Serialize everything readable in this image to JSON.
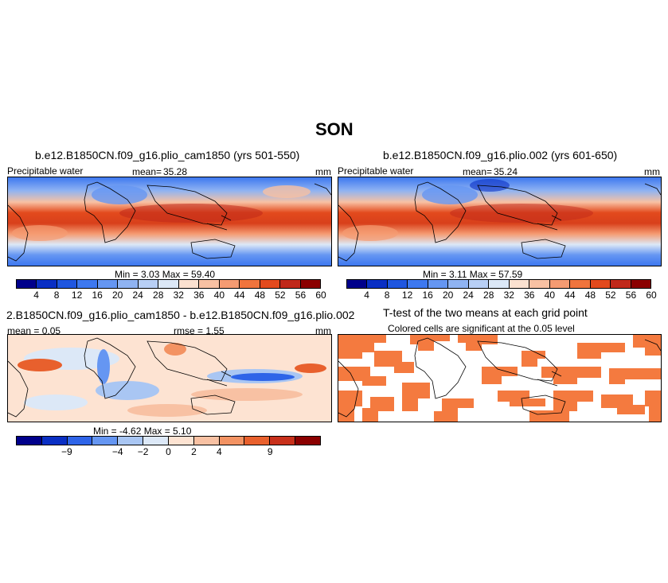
{
  "figure": {
    "title": "SON"
  },
  "panel_a": {
    "case_title": "b.e12.B1850CN.f09_g16.plio_cam1850 (yrs 501-550)",
    "variable": "Precipitable water",
    "mean_label": "mean=",
    "mean_value": "35.28",
    "units": "mm",
    "minmax": "Min =     3.03  Max =    59.40"
  },
  "panel_b": {
    "case_title": "b.e12.B1850CN.f09_g16.plio.002 (yrs 601-650)",
    "variable": "Precipitable water",
    "mean_label": "mean=",
    "mean_value": "35.24",
    "units": "mm",
    "minmax": "Min =     3.11  Max =    57.59"
  },
  "panel_c": {
    "case_title": "2.B1850CN.f09_g16.plio_cam1850 - b.e12.B1850CN.f09_g16.plio.002",
    "mean_text": "mean =   0.05",
    "rmse_text": "rmse =    1.55",
    "units": "mm",
    "minmax": "Min =    -4.62  Max =     5.10"
  },
  "panel_d": {
    "title": "T-test of the two means at each grid point",
    "subtitle": "Colored cells are significant at the 0.05 level"
  },
  "colorbar_abs": {
    "ticks": [
      "4",
      "8",
      "12",
      "16",
      "20",
      "24",
      "28",
      "32",
      "36",
      "40",
      "44",
      "48",
      "52",
      "56",
      "60"
    ],
    "colors": [
      "#00008b",
      "#0a2fc4",
      "#1f56e0",
      "#3d78f0",
      "#6596f2",
      "#8fb3f2",
      "#b8cff5",
      "#dce8f7",
      "#fbe1d0",
      "#f8c1a3",
      "#f59b72",
      "#f0743d",
      "#e34a1d",
      "#c0281a",
      "#8b0000"
    ]
  },
  "colorbar_diff": {
    "ticks": [
      "−9",
      "−4",
      "−2",
      "0",
      "2",
      "4",
      "9"
    ],
    "colors": [
      "#00008b",
      "#0a2fc4",
      "#2e64e8",
      "#6596f2",
      "#a9c6f3",
      "#dce8f7",
      "#fde3d2",
      "#f8c1a3",
      "#f39363",
      "#e8602d",
      "#c8301b",
      "#8b0000"
    ]
  },
  "colors": {
    "ttest_fill": "#f47a3f",
    "land_outline": "#000000"
  }
}
